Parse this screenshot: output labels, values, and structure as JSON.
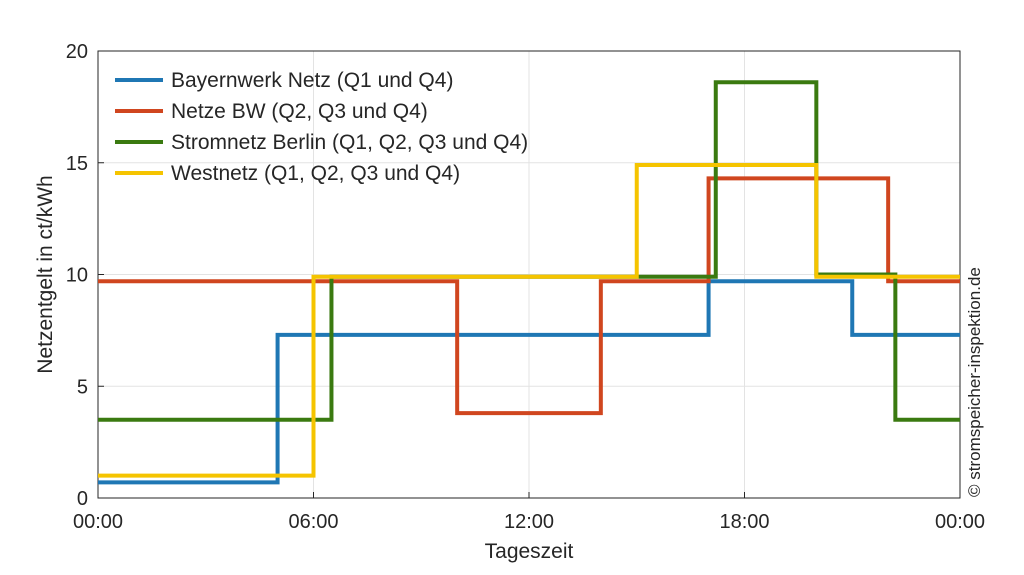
{
  "chart_data": {
    "type": "line",
    "step": true,
    "xlabel": "Tageszeit",
    "ylabel": "Netzentgelt in ct/kWh",
    "xlim": [
      0,
      24
    ],
    "ylim": [
      0,
      20
    ],
    "xticks": [
      0,
      6,
      12,
      18,
      24
    ],
    "xtick_labels": [
      "00:00",
      "06:00",
      "12:00",
      "18:00",
      "00:00"
    ],
    "yticks": [
      0,
      5,
      10,
      15,
      20
    ],
    "ytick_labels": [
      "0",
      "5",
      "10",
      "15",
      "20"
    ],
    "grid": true,
    "legend_position": "top-left",
    "credit": "© stromspeicher-inspektion.de",
    "series": [
      {
        "name": "Bayernwerk Netz (Q1 und Q4)",
        "color": "#1f77b4",
        "x": [
          0,
          5,
          17,
          21,
          24
        ],
        "y": [
          0.7,
          7.3,
          9.7,
          7.3,
          7.3
        ]
      },
      {
        "name": "Netze BW (Q2, Q3 und Q4)",
        "color": "#d0461f",
        "x": [
          0,
          10,
          14,
          17,
          22,
          24
        ],
        "y": [
          9.7,
          3.8,
          9.7,
          14.3,
          9.7,
          9.7
        ]
      },
      {
        "name": "Stromnetz Berlin (Q1, Q2, Q3 und Q4)",
        "color": "#3a7a10",
        "x": [
          0,
          6.5,
          15,
          17.2,
          20,
          22.2,
          24
        ],
        "y": [
          3.5,
          9.9,
          9.9,
          18.6,
          10.0,
          3.5,
          3.5
        ]
      },
      {
        "name": "Westnetz (Q1, Q2, Q3 und Q4)",
        "color": "#f5c400",
        "x": [
          0,
          6,
          15,
          20,
          24
        ],
        "y": [
          1.0,
          9.9,
          14.9,
          9.9,
          9.9
        ]
      }
    ]
  }
}
